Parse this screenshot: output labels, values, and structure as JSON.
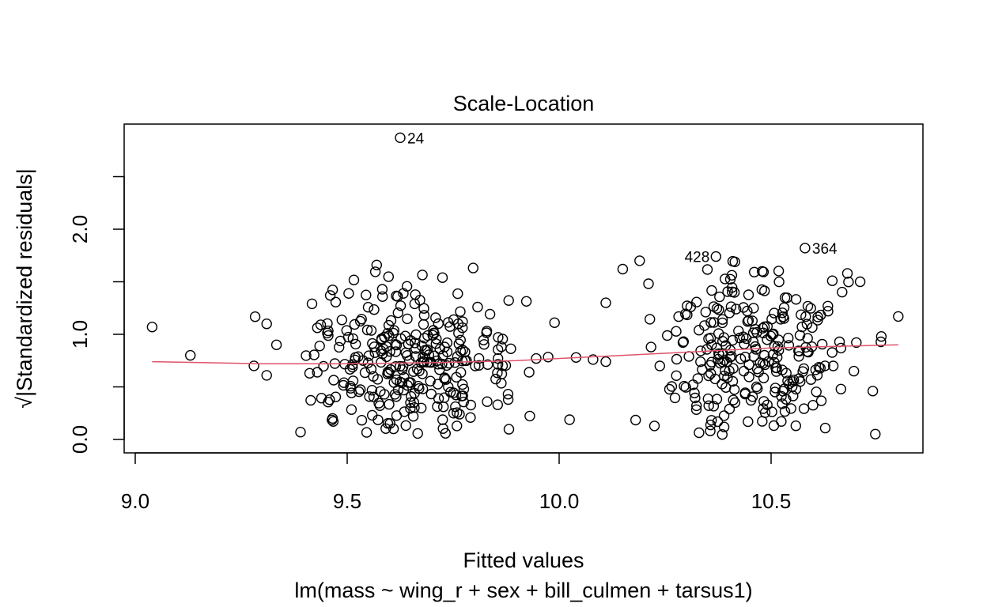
{
  "chart_data": {
    "type": "scatter",
    "title": "Scale-Location",
    "xlabel": "Fitted values",
    "ylabel": "√|Standardized residuals|",
    "subtitle": "lm(mass ~ wing_r + sex + bill_culmen + tarsus1)",
    "xlim": [
      9.0,
      10.85
    ],
    "ylim": [
      0.0,
      2.9
    ],
    "x_ticks": [
      9.0,
      9.5,
      10.0,
      10.5
    ],
    "x_tick_labels": [
      "9.0",
      "9.5",
      "10.0",
      "10.5"
    ],
    "y_ticks": [
      0.0,
      0.5,
      1.0,
      1.5,
      2.0,
      2.5
    ],
    "y_tick_labels": [
      "0.0",
      "",
      "1.0",
      "",
      "2.0",
      ""
    ],
    "grid": false,
    "colors": {
      "points": "#000000",
      "smoother": "#DF536B",
      "frame": "#000000"
    },
    "points_sampled": true,
    "clusters": [
      {
        "name": "",
        "x_center": 9.66,
        "x_spread": 0.13,
        "y_mean": 0.72,
        "y_sd": 0.35,
        "count": 300,
        "seed": 7
      },
      {
        "name": "",
        "x_center": 10.45,
        "x_spread": 0.13,
        "y_mean": 0.86,
        "y_sd": 0.38,
        "count": 260,
        "seed": 19
      }
    ],
    "labeled_points": [
      {
        "id": "24",
        "x": 9.625,
        "y": 2.87
      },
      {
        "id": "428",
        "x": 10.37,
        "y": 1.74
      },
      {
        "id": "364",
        "x": 10.58,
        "y": 1.82
      }
    ],
    "extra_points": [
      {
        "x": 9.04,
        "y": 1.07
      },
      {
        "x": 9.13,
        "y": 0.8
      },
      {
        "x": 9.28,
        "y": 0.7
      },
      {
        "x": 9.31,
        "y": 1.1
      },
      {
        "x": 9.31,
        "y": 0.61
      },
      {
        "x": 9.39,
        "y": 0.07
      },
      {
        "x": 10.04,
        "y": 0.78
      },
      {
        "x": 10.08,
        "y": 0.76
      },
      {
        "x": 10.11,
        "y": 1.3
      },
      {
        "x": 10.11,
        "y": 0.74
      },
      {
        "x": 10.15,
        "y": 1.62
      },
      {
        "x": 10.19,
        "y": 1.7
      },
      {
        "x": 10.8,
        "y": 1.17
      },
      {
        "x": 10.76,
        "y": 0.98
      },
      {
        "x": 10.74,
        "y": 0.46
      },
      {
        "x": 10.68,
        "y": 1.58
      },
      {
        "x": 10.71,
        "y": 1.5
      }
    ],
    "smoother": {
      "x": [
        9.04,
        9.3,
        9.5,
        9.7,
        9.9,
        10.1,
        10.3,
        10.5,
        10.7,
        10.8
      ],
      "y": [
        0.74,
        0.72,
        0.72,
        0.73,
        0.75,
        0.79,
        0.83,
        0.87,
        0.89,
        0.9
      ]
    }
  }
}
